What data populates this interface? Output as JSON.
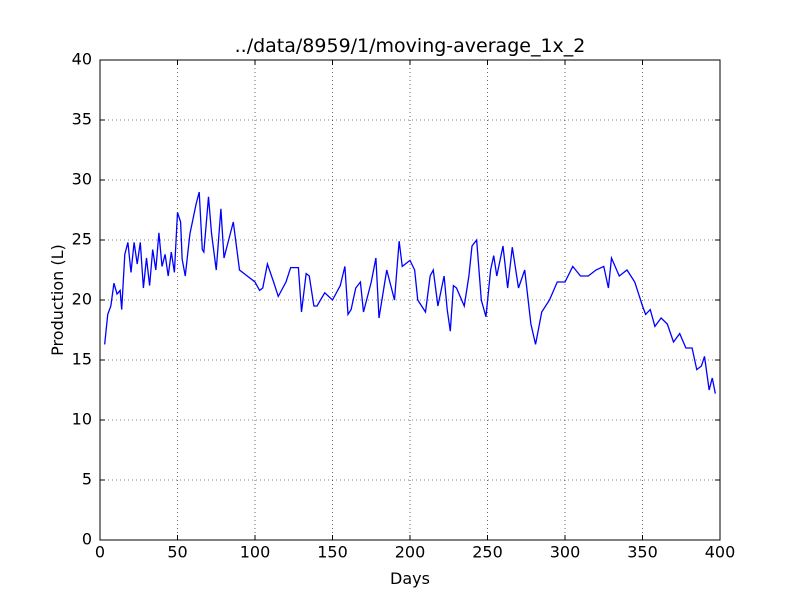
{
  "chart_data": {
    "type": "line",
    "title": "../data/8959/1/moving-average_1x_2",
    "x_label": "Days",
    "y_label": "Production (L)",
    "x": [
      3,
      5,
      7,
      9,
      11,
      13,
      14,
      16,
      18,
      20,
      22,
      24,
      26,
      28,
      30,
      32,
      34,
      36,
      38,
      40,
      42,
      44,
      46,
      48,
      50,
      52,
      53,
      55,
      58,
      62,
      64,
      66,
      67,
      70,
      72,
      75,
      78,
      80,
      82,
      86,
      88,
      90,
      95,
      100,
      103,
      105,
      108,
      112,
      115,
      120,
      123,
      128,
      130,
      133,
      135,
      138,
      140,
      145,
      150,
      155,
      158,
      160,
      162,
      165,
      168,
      170,
      175,
      178,
      180,
      185,
      188,
      190,
      193,
      195,
      197,
      200,
      203,
      205,
      210,
      213,
      215,
      218,
      222,
      224,
      226,
      228,
      230,
      235,
      238,
      240,
      243,
      246,
      249,
      252,
      254,
      256,
      260,
      263,
      266,
      270,
      274,
      278,
      281,
      285,
      290,
      295,
      300,
      305,
      310,
      315,
      320,
      325,
      328,
      330,
      335,
      340,
      345,
      350,
      352,
      355,
      358,
      362,
      366,
      370,
      374,
      378,
      382,
      385,
      388,
      390,
      393,
      395,
      397
    ],
    "series": [
      {
        "name": "moving-average",
        "color": "#0000ff",
        "values": [
          16.3,
          18.8,
          19.5,
          21.4,
          20.5,
          20.8,
          19.2,
          23.8,
          24.8,
          22.3,
          24.8,
          23.0,
          24.8,
          21.0,
          23.5,
          21.2,
          24.2,
          22.5,
          25.6,
          22.8,
          23.8,
          22.0,
          24.0,
          22.3,
          27.3,
          26.5,
          23.4,
          22.0,
          25.5,
          28.0,
          29.0,
          24.2,
          24.0,
          28.6,
          25.5,
          22.5,
          27.6,
          23.5,
          24.5,
          26.5,
          24.5,
          22.5,
          22.0,
          21.5,
          20.8,
          21.0,
          23.0,
          21.5,
          20.3,
          21.5,
          22.7,
          22.7,
          19.0,
          22.2,
          22.0,
          19.5,
          19.5,
          20.6,
          20.0,
          21.2,
          22.8,
          18.8,
          19.2,
          21.0,
          21.5,
          19.0,
          21.5,
          23.5,
          18.5,
          22.5,
          21.0,
          20.0,
          24.9,
          22.8,
          23.0,
          23.3,
          22.5,
          20.0,
          19.0,
          22.0,
          22.5,
          19.5,
          22.0,
          19.2,
          17.4,
          21.2,
          21.0,
          19.5,
          22.0,
          24.5,
          25.0,
          20.0,
          18.6,
          22.5,
          23.7,
          22.0,
          24.5,
          21.0,
          24.4,
          21.0,
          22.5,
          18.0,
          16.3,
          19.0,
          20.0,
          21.5,
          21.5,
          22.8,
          22.0,
          22.0,
          22.5,
          22.8,
          21.0,
          23.5,
          22.0,
          22.5,
          21.5,
          19.5,
          18.8,
          19.2,
          17.8,
          18.5,
          18.0,
          16.5,
          17.2,
          16.0,
          16.0,
          14.2,
          14.5,
          15.3,
          12.5,
          13.5,
          12.2
        ]
      }
    ],
    "xlim": [
      0,
      400
    ],
    "xticks": [
      0,
      50,
      100,
      150,
      200,
      250,
      300,
      350,
      400
    ],
    "ylim": [
      0,
      40
    ],
    "yticks": [
      0,
      5,
      10,
      15,
      20,
      25,
      30,
      35,
      40
    ],
    "grid": true
  }
}
